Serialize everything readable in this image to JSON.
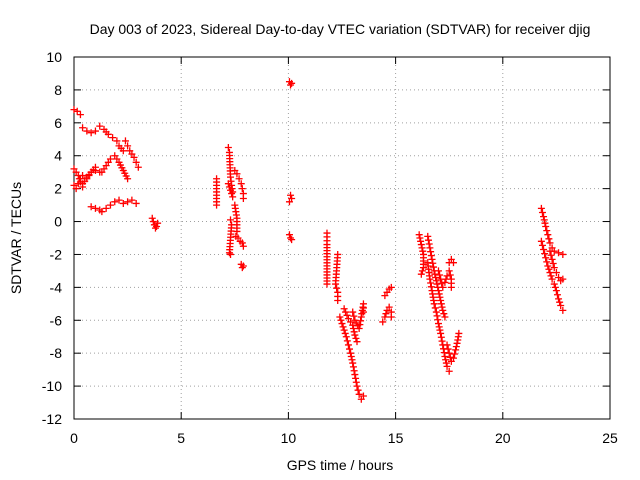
{
  "chart_data": {
    "type": "scatter",
    "title": "Day 003 of 2023, Sidereal Day-to-day VTEC variation (SDTVAR) for receiver djig",
    "xlabel": "GPS time / hours",
    "ylabel": "SDTVAR / TECUs",
    "xlim": [
      0,
      25
    ],
    "ylim": [
      -12,
      10
    ],
    "xticks": [
      0,
      5,
      10,
      15,
      20,
      25
    ],
    "yticks": [
      -12,
      -10,
      -8,
      -6,
      -4,
      -2,
      0,
      2,
      4,
      6,
      8,
      10
    ],
    "grid": true,
    "marker": "+",
    "color": "#ff0000",
    "series": [
      {
        "name": "SDTVAR",
        "segments": [
          [
            [
              0.0,
              6.8
            ],
            [
              0.15,
              6.7
            ],
            [
              0.3,
              6.5
            ]
          ],
          [
            [
              0.0,
              3.2
            ],
            [
              0.1,
              3.0
            ],
            [
              0.2,
              2.8
            ],
            [
              0.3,
              2.4
            ],
            [
              0.4,
              2.1
            ]
          ],
          [
            [
              0.0,
              2.2
            ],
            [
              0.1,
              2.0
            ],
            [
              0.2,
              2.3
            ],
            [
              0.3,
              2.6
            ]
          ],
          [
            [
              0.4,
              2.8
            ],
            [
              0.6,
              2.7
            ],
            [
              0.8,
              3.0
            ],
            [
              1.0,
              3.3
            ]
          ],
          [
            [
              0.4,
              2.3
            ],
            [
              0.6,
              2.6
            ],
            [
              0.8,
              3.0
            ],
            [
              1.0,
              3.1
            ],
            [
              1.2,
              3.0
            ]
          ],
          [
            [
              0.4,
              5.7
            ],
            [
              0.6,
              5.5
            ],
            [
              0.8,
              5.4
            ],
            [
              1.0,
              5.5
            ]
          ],
          [
            [
              0.8,
              0.9
            ],
            [
              1.0,
              0.8
            ],
            [
              1.2,
              0.7
            ]
          ],
          [
            [
              1.2,
              5.8
            ],
            [
              1.4,
              5.6
            ],
            [
              1.6,
              5.3
            ],
            [
              1.8,
              5.1
            ],
            [
              2.0,
              4.9
            ],
            [
              2.1,
              4.6
            ],
            [
              2.3,
              4.3
            ]
          ],
          [
            [
              1.3,
              3.0
            ],
            [
              1.5,
              3.4
            ],
            [
              1.7,
              3.8
            ],
            [
              1.9,
              4.0
            ],
            [
              2.1,
              3.6
            ],
            [
              2.3,
              3.1
            ],
            [
              2.5,
              2.6
            ]
          ],
          [
            [
              1.3,
              0.6
            ],
            [
              1.5,
              0.8
            ],
            [
              1.7,
              1.0
            ],
            [
              1.9,
              1.2
            ],
            [
              2.1,
              1.3
            ],
            [
              2.3,
              1.1
            ],
            [
              2.5,
              1.2
            ],
            [
              2.7,
              1.3
            ],
            [
              2.9,
              1.1
            ]
          ],
          [
            [
              2.4,
              4.9
            ],
            [
              2.5,
              4.6
            ],
            [
              2.6,
              4.3
            ],
            [
              2.7,
              4.1
            ],
            [
              2.8,
              3.9
            ],
            [
              2.9,
              3.6
            ],
            [
              3.0,
              3.3
            ]
          ],
          [
            [
              3.65,
              0.2
            ],
            [
              3.7,
              0.0
            ],
            [
              3.75,
              -0.2
            ],
            [
              3.8,
              -0.4
            ],
            [
              3.85,
              -0.3
            ],
            [
              3.9,
              -0.1
            ]
          ],
          [
            [
              6.65,
              2.6
            ],
            [
              6.65,
              2.0
            ],
            [
              6.65,
              1.0
            ]
          ],
          [
            [
              7.2,
              4.5
            ],
            [
              7.25,
              4.2
            ],
            [
              7.3,
              2.7
            ],
            [
              7.35,
              2.2
            ],
            [
              7.4,
              1.8
            ]
          ],
          [
            [
              7.2,
              2.3
            ],
            [
              7.3,
              1.9
            ],
            [
              7.4,
              1.5
            ]
          ],
          [
            [
              7.3,
              0.1
            ],
            [
              7.35,
              -0.2
            ],
            [
              7.25,
              -1.9
            ],
            [
              7.3,
              -2.0
            ]
          ],
          [
            [
              7.5,
              1.0
            ],
            [
              7.55,
              0.6
            ],
            [
              7.6,
              0.2
            ],
            [
              7.6,
              -0.6
            ]
          ],
          [
            [
              7.5,
              3.1
            ],
            [
              7.6,
              2.9
            ],
            [
              7.7,
              2.6
            ],
            [
              7.8,
              2.3
            ],
            [
              7.85,
              2.0
            ],
            [
              7.9,
              1.7
            ],
            [
              7.9,
              1.4
            ]
          ],
          [
            [
              7.55,
              -0.9
            ],
            [
              7.65,
              -1.0
            ],
            [
              7.75,
              -1.2
            ],
            [
              7.85,
              -1.3
            ],
            [
              7.9,
              -1.5
            ]
          ],
          [
            [
              7.8,
              -2.6
            ],
            [
              7.85,
              -2.8
            ],
            [
              7.9,
              -2.7
            ]
          ],
          [
            [
              10.05,
              8.5
            ],
            [
              10.1,
              8.3
            ],
            [
              10.15,
              8.4
            ]
          ],
          [
            [
              10.1,
              1.6
            ],
            [
              10.15,
              1.4
            ],
            [
              10.05,
              1.2
            ]
          ],
          [
            [
              10.05,
              -0.8
            ],
            [
              10.1,
              -1.0
            ],
            [
              10.15,
              -1.1
            ]
          ],
          [
            [
              11.8,
              -0.7
            ],
            [
              11.8,
              -1.4
            ],
            [
              11.8,
              -3.8
            ]
          ],
          [
            [
              12.3,
              -2.0
            ],
            [
              12.2,
              -3.8
            ],
            [
              12.3,
              -4.3
            ],
            [
              12.3,
              -4.8
            ]
          ],
          [
            [
              12.4,
              -5.8
            ],
            [
              12.5,
              -6.2
            ],
            [
              12.6,
              -6.6
            ],
            [
              12.7,
              -7.0
            ],
            [
              12.8,
              -7.5
            ],
            [
              12.9,
              -8.0
            ],
            [
              13.0,
              -8.6
            ],
            [
              13.1,
              -9.3
            ],
            [
              13.2,
              -10.0
            ],
            [
              13.3,
              -10.5
            ],
            [
              13.4,
              -10.8
            ],
            [
              13.5,
              -10.6
            ]
          ],
          [
            [
              12.6,
              -5.3
            ],
            [
              12.8,
              -5.9
            ],
            [
              13.0,
              -6.3
            ],
            [
              13.1,
              -6.9
            ],
            [
              13.2,
              -7.3
            ]
          ],
          [
            [
              13.0,
              -5.5
            ],
            [
              13.1,
              -6.0
            ],
            [
              13.3,
              -6.5
            ],
            [
              13.4,
              -5.8
            ],
            [
              13.5,
              -5.0
            ],
            [
              13.5,
              -5.5
            ]
          ],
          [
            [
              14.4,
              -6.1
            ],
            [
              14.5,
              -5.8
            ],
            [
              14.6,
              -5.4
            ],
            [
              14.7,
              -5.2
            ],
            [
              14.8,
              -5.5
            ],
            [
              14.8,
              -5.8
            ]
          ],
          [
            [
              14.5,
              -4.5
            ],
            [
              14.6,
              -4.3
            ],
            [
              14.7,
              -4.1
            ],
            [
              14.8,
              -4.0
            ]
          ],
          [
            [
              16.1,
              -0.8
            ],
            [
              16.2,
              -1.4
            ],
            [
              16.3,
              -2.0
            ],
            [
              16.3,
              -2.8
            ],
            [
              16.2,
              -3.2
            ]
          ],
          [
            [
              16.5,
              -0.9
            ],
            [
              16.6,
              -1.6
            ],
            [
              16.7,
              -2.3
            ],
            [
              16.8,
              -3.0
            ],
            [
              16.9,
              -3.6
            ],
            [
              17.0,
              -4.2
            ],
            [
              17.1,
              -4.8
            ],
            [
              17.2,
              -5.4
            ],
            [
              17.3,
              -5.8
            ]
          ],
          [
            [
              16.5,
              -2.5
            ],
            [
              16.6,
              -3.5
            ],
            [
              16.7,
              -4.2
            ],
            [
              16.8,
              -5.0
            ],
            [
              16.9,
              -5.5
            ],
            [
              17.0,
              -6.2
            ],
            [
              17.1,
              -6.8
            ],
            [
              17.2,
              -7.5
            ],
            [
              17.3,
              -8.2
            ],
            [
              17.4,
              -8.8
            ],
            [
              17.5,
              -9.1
            ]
          ],
          [
            [
              17.0,
              -3.0
            ],
            [
              17.1,
              -3.5
            ],
            [
              17.2,
              -4.0
            ],
            [
              17.3,
              -3.7
            ],
            [
              17.4,
              -3.3
            ],
            [
              17.5,
              -3.0
            ],
            [
              17.6,
              -3.5
            ],
            [
              17.6,
              -4.0
            ]
          ],
          [
            [
              17.4,
              -7.5
            ],
            [
              17.5,
              -8.0
            ],
            [
              17.6,
              -8.5
            ],
            [
              17.7,
              -8.3
            ],
            [
              17.8,
              -7.8
            ],
            [
              17.9,
              -7.2
            ],
            [
              17.95,
              -6.8
            ]
          ],
          [
            [
              17.5,
              -2.5
            ],
            [
              17.6,
              -2.3
            ],
            [
              17.7,
              -2.5
            ]
          ],
          [
            [
              21.8,
              0.8
            ],
            [
              21.9,
              0.3
            ],
            [
              22.0,
              -0.3
            ],
            [
              22.1,
              -0.8
            ],
            [
              22.2,
              -1.3
            ],
            [
              22.3,
              -1.6
            ],
            [
              22.4,
              -1.8
            ],
            [
              22.6,
              -1.9
            ],
            [
              22.8,
              -2.0
            ]
          ],
          [
            [
              21.8,
              -1.2
            ],
            [
              21.9,
              -1.7
            ],
            [
              22.0,
              -2.2
            ],
            [
              22.1,
              -2.7
            ],
            [
              22.2,
              -3.1
            ],
            [
              22.3,
              -3.5
            ],
            [
              22.4,
              -3.8
            ],
            [
              22.5,
              -4.2
            ],
            [
              22.6,
              -4.7
            ],
            [
              22.7,
              -5.1
            ],
            [
              22.8,
              -5.4
            ]
          ],
          [
            [
              22.2,
              -1.8
            ],
            [
              22.3,
              -2.3
            ],
            [
              22.4,
              -2.8
            ],
            [
              22.5,
              -3.1
            ],
            [
              22.6,
              -3.4
            ],
            [
              22.7,
              -3.6
            ],
            [
              22.8,
              -3.5
            ]
          ]
        ]
      }
    ]
  }
}
